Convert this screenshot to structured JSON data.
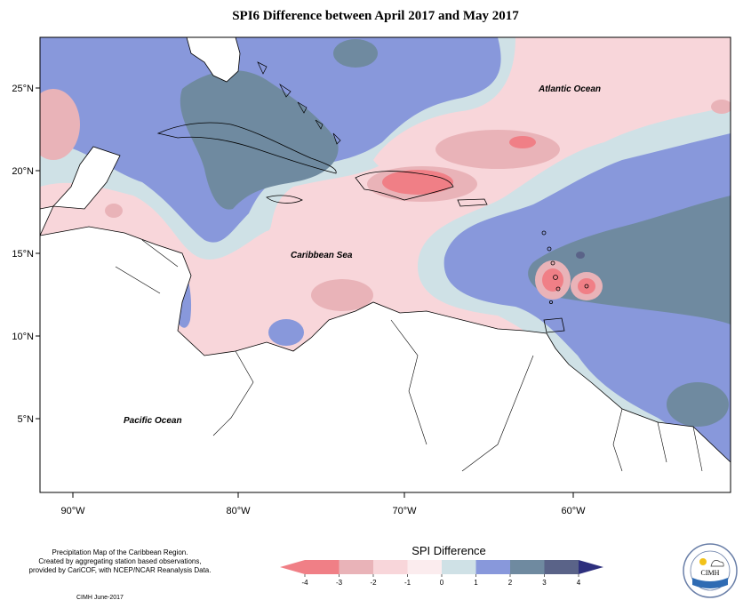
{
  "title": "SPI6 Difference between April 2017 and May 2017",
  "map": {
    "ocean_labels": {
      "atlantic": "Atlantic Ocean",
      "caribbean": "Caribbean Sea",
      "pacific": "Pacific Ocean"
    },
    "lat_ticks": [
      "25°N",
      "20°N",
      "15°N",
      "10°N",
      "5°N"
    ],
    "lon_ticks": [
      "90°W",
      "80°W",
      "70°W",
      "60°W"
    ],
    "extent": {
      "lon_min": -92,
      "lon_max": -50,
      "lat_min": 1.7,
      "lat_max": 28.7
    }
  },
  "credits": {
    "line1": "Precipitation Map of the Caribbean Region.",
    "line2": "Created by aggregating station based observations,",
    "line3": "provided by CariCOF, with NCEP/NCAR Reanalysis Data."
  },
  "footer": "CIMH June-2017",
  "legend": {
    "title": "SPI Difference",
    "ticks": [
      "-4",
      "-3",
      "-2",
      "-1",
      "0",
      "1",
      "2",
      "3",
      "4"
    ],
    "bins": [
      {
        "color": "#f07f86"
      },
      {
        "color": "#e9b3b8"
      },
      {
        "color": "#f8d6da"
      },
      {
        "color": "#fbecee"
      },
      {
        "color": "#cfe1e6"
      },
      {
        "color": "#8898db"
      },
      {
        "color": "#6f8aa0"
      },
      {
        "color": "#5a6388"
      },
      {
        "color": "#2d2f7d"
      }
    ]
  },
  "logo_text": "CIMH"
}
